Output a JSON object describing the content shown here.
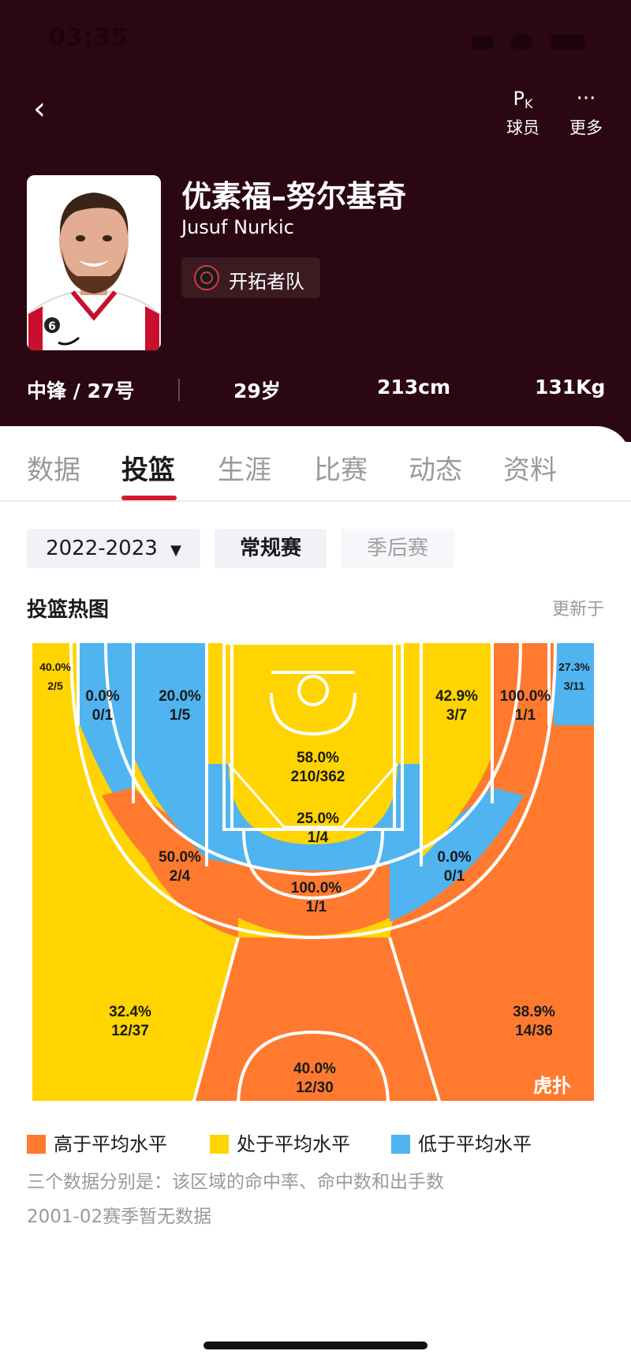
{
  "status_bar": {
    "time": "03:35"
  },
  "header": {
    "back_icon": "chevron-left-icon",
    "pk_button": {
      "icon_main": "P",
      "icon_sub": "K",
      "label": "球员"
    },
    "more_button": {
      "icon": "···",
      "label": "更多"
    }
  },
  "player": {
    "name_cn": "优素福–努尔基奇",
    "name_en": "Jusuf Nurkic",
    "team": "开拓者队",
    "position_number": "中锋 / 27号",
    "age": "29岁",
    "height": "213cm",
    "weight": "131Kg",
    "jersey_number": "6"
  },
  "tabs": [
    "数据",
    "投篮",
    "生涯",
    "比赛",
    "动态",
    "资料"
  ],
  "active_tab": 1,
  "filters": {
    "season": "2022-2023",
    "season_arrow": "▼",
    "regular": "常规赛",
    "playoffs": "季后赛"
  },
  "section": {
    "title": "投篮热图",
    "updated": "更新于"
  },
  "colors": {
    "above": "#FF7A2F",
    "average": "#FFD400",
    "below": "#4FB4F0",
    "court_lines": "#ffffff",
    "accent": "#D6182F",
    "hero_bg": "#2B0811"
  },
  "zones": [
    {
      "id": "left-corner-three",
      "pct": "40.0%",
      "made_att": "2/5",
      "level": "average"
    },
    {
      "id": "right-corner-three",
      "pct": "27.3%",
      "made_att": "3/11",
      "level": "below"
    },
    {
      "id": "left-baseline-mid",
      "pct": "0.0%",
      "made_att": "0/1",
      "level": "below"
    },
    {
      "id": "left-short-baseline",
      "pct": "20.0%",
      "made_att": "1/5",
      "level": "below"
    },
    {
      "id": "restricted-area",
      "pct": "58.0%",
      "made_att": "210/362",
      "level": "average"
    },
    {
      "id": "right-short-baseline",
      "pct": "42.9%",
      "made_att": "3/7",
      "level": "average"
    },
    {
      "id": "right-baseline-mid",
      "pct": "100.0%",
      "made_att": "1/1",
      "level": "above"
    },
    {
      "id": "paint-non-ra",
      "pct": "25.0%",
      "made_att": "1/4",
      "level": "below"
    },
    {
      "id": "left-elbow-mid",
      "pct": "50.0%",
      "made_att": "2/4",
      "level": "above"
    },
    {
      "id": "top-key-mid",
      "pct": "100.0%",
      "made_att": "1/1",
      "level": "above"
    },
    {
      "id": "right-elbow-mid",
      "pct": "0.0%",
      "made_att": "0/1",
      "level": "below"
    },
    {
      "id": "left-wing-three",
      "pct": "32.4%",
      "made_att": "12/37",
      "level": "average"
    },
    {
      "id": "top-three",
      "pct": "40.0%",
      "made_att": "12/30",
      "level": "above"
    },
    {
      "id": "right-wing-three",
      "pct": "38.9%",
      "made_att": "14/36",
      "level": "above"
    }
  ],
  "watermark": "虎扑",
  "legend": [
    {
      "label": "高于平均水平",
      "level": "above"
    },
    {
      "label": "处于平均水平",
      "level": "average"
    },
    {
      "label": "低于平均水平",
      "level": "below"
    }
  ],
  "notes": [
    "三个数据分别是：该区域的命中率、命中数和出手数",
    "2001-02赛季暂无数据"
  ]
}
